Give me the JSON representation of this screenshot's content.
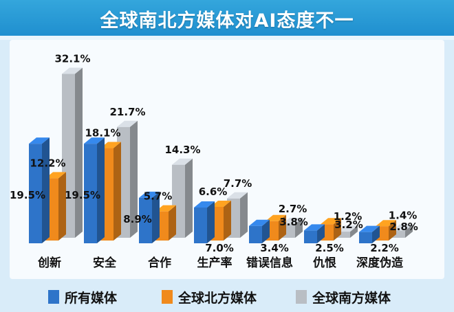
{
  "title": "全球南北方媒体对AI态度不一",
  "colors": {
    "series_all": "#2e74c9",
    "series_north": "#f08a1c",
    "series_south": "#b9bec4",
    "title_bg": "#2596d3"
  },
  "chart_data": {
    "type": "bar",
    "title": "全球南北方媒体对AI态度不一",
    "xlabel": "",
    "ylabel": "",
    "ylim": [
      0,
      35
    ],
    "grid": false,
    "legend_position": "bottom",
    "value_suffix": "%",
    "categories": [
      "创新",
      "安全",
      "合作",
      "生产率",
      "错误信息",
      "仇恨",
      "深度伪造"
    ],
    "series": [
      {
        "name": "所有媒体",
        "color": "#2e74c9",
        "values": [
          19.5,
          19.5,
          8.9,
          7.0,
          3.4,
          2.5,
          2.2
        ]
      },
      {
        "name": "全球北方媒体",
        "color": "#f08a1c",
        "values": [
          12.2,
          18.1,
          5.7,
          6.6,
          3.8,
          3.2,
          2.8
        ]
      },
      {
        "name": "全球南方媒体",
        "color": "#b9bec4",
        "values": [
          32.1,
          21.7,
          14.3,
          7.7,
          2.7,
          1.2,
          1.4
        ]
      }
    ]
  },
  "legend": [
    {
      "label": "所有媒体",
      "color": "#2e74c9"
    },
    {
      "label": "全球北方媒体",
      "color": "#f08a1c"
    },
    {
      "label": "全球南方媒体",
      "color": "#b9bec4"
    }
  ]
}
